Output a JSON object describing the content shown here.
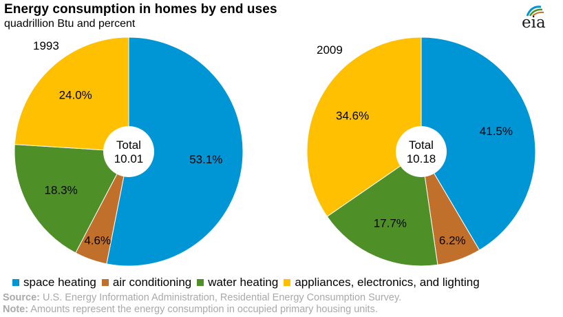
{
  "title": "Energy consumption  in homes by end uses",
  "subtitle": "quadrillion Btu and percent",
  "logo_text": "eia",
  "chart_data": [
    {
      "type": "pie",
      "year_label": "1993",
      "total_label": "Total",
      "total_value": "10.01",
      "slices": [
        {
          "name": "space heating",
          "value": 53.1,
          "label": "53.1%",
          "color": "#0096d6"
        },
        {
          "name": "air conditioning",
          "value": 4.6,
          "label": "4.6%",
          "color": "#c0702b"
        },
        {
          "name": "water heating",
          "value": 18.3,
          "label": "18.3%",
          "color": "#4e8f27"
        },
        {
          "name": "appliances, electronics, and lighting",
          "value": 24.0,
          "label": "24.0%",
          "color": "#fec000"
        }
      ]
    },
    {
      "type": "pie",
      "year_label": "2009",
      "total_label": "Total",
      "total_value": "10.18",
      "slices": [
        {
          "name": "space heating",
          "value": 41.5,
          "label": "41.5%",
          "color": "#0096d6"
        },
        {
          "name": "air conditioning",
          "value": 6.2,
          "label": "6.2%",
          "color": "#c0702b"
        },
        {
          "name": "water heating",
          "value": 17.7,
          "label": "17.7%",
          "color": "#4e8f27"
        },
        {
          "name": "appliances, electronics, and lighting",
          "value": 34.6,
          "label": "34.6%",
          "color": "#fec000"
        }
      ]
    }
  ],
  "legend": [
    {
      "label": "space heating",
      "color": "#0096d6"
    },
    {
      "label": "air conditioning",
      "color": "#c0702b"
    },
    {
      "label": "water heating",
      "color": "#4e8f27"
    },
    {
      "label": "appliances, electronics, and lighting",
      "color": "#fec000"
    }
  ],
  "source": {
    "label": "Source:",
    "text": " U.S. Energy Information Administration, Residential Energy Consumption Survey."
  },
  "note": {
    "label": "Note:",
    "text": " Amounts represent the energy consumption in occupied primary housing units."
  }
}
